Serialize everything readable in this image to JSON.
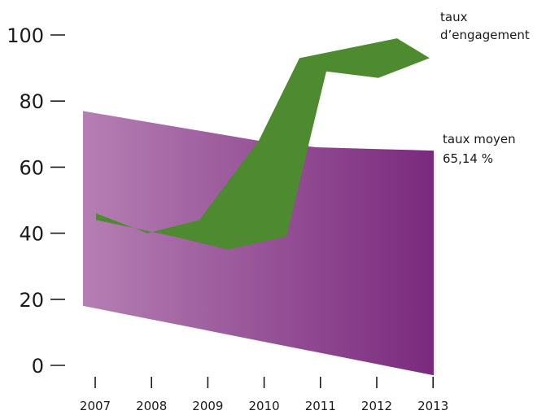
{
  "chart_data": {
    "type": "area",
    "title": "",
    "xlabel": "",
    "ylabel": "",
    "x": [
      "2007",
      "2008",
      "2009",
      "2010",
      "2011",
      "2012",
      "2013"
    ],
    "ylim": [
      0,
      100
    ],
    "yticks": [
      0,
      20,
      40,
      60,
      80,
      100
    ],
    "series": [
      {
        "name": "taux moyen",
        "kind": "3d-ribbon",
        "color_start": "#b57fb3",
        "color_end": "#7a2a7d",
        "front_values": [
          18,
          14.5,
          11,
          7.5,
          4,
          0.5,
          -3
        ],
        "back_values": [
          77,
          74,
          71,
          68,
          66,
          65.5,
          65
        ],
        "annotation": [
          "taux moyen",
          "65,14 %"
        ]
      },
      {
        "name": "taux d'engagement",
        "kind": "3d-ribbon",
        "color": "#4d8a30",
        "upper_values": [
          46,
          40,
          44,
          68,
          93,
          99,
          93
        ],
        "lower_values": [
          44,
          39,
          35,
          39,
          89,
          87,
          93
        ],
        "annotation": [
          "taux",
          "d’engagement"
        ]
      }
    ],
    "grid": false,
    "legend": "none"
  }
}
